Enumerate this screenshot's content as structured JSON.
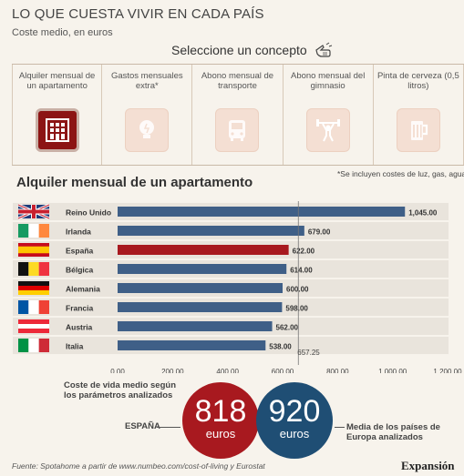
{
  "header": {
    "title": "LO QUE CUESTA VIVIR EN CADA PAÍS",
    "subtitle": "Coste medio, en euros",
    "select_prompt": "Seleccione un concepto"
  },
  "concepts": [
    {
      "label": "Alquiler mensual de un apartamento",
      "icon": "building-icon",
      "active": true
    },
    {
      "label": "Gastos mensuales extra*",
      "icon": "lightbulb-icon",
      "active": false
    },
    {
      "label": "Abono mensual de transporte",
      "icon": "bus-icon",
      "active": false
    },
    {
      "label": "Abono mensual del gimnasio",
      "icon": "weightlifter-icon",
      "active": false
    },
    {
      "label": "Pinta de cerveza (0,5 litros)",
      "icon": "beer-mug-icon",
      "active": false
    }
  ],
  "footnote": "*Se incluyen costes de luz, gas, agua, etc.",
  "colors": {
    "bar": "#3f5f87",
    "bar_highlight": "#a8191f",
    "row_band": "#e9e4dc",
    "accent_red": "#a8191f",
    "accent_blue": "#1f4e74"
  },
  "chart_data": {
    "type": "bar",
    "orientation": "horizontal",
    "title": "Alquiler mensual de un apartamento",
    "categories": [
      "Reino Unido",
      "Irlanda",
      "España",
      "Bélgica",
      "Alemania",
      "Francia",
      "Austria",
      "Italia"
    ],
    "values": [
      1045.0,
      679.0,
      622.0,
      614.0,
      600.0,
      598.0,
      562.0,
      538.0
    ],
    "value_labels": [
      "1,045.00",
      "679.00",
      "622.00",
      "614.00",
      "600.00",
      "598.00",
      "562.00",
      "538.00"
    ],
    "highlight": "España",
    "flags": [
      "uk-flag-icon",
      "ireland-flag-icon",
      "spain-flag-icon",
      "belgium-flag-icon",
      "germany-flag-icon",
      "france-flag-icon",
      "austria-flag-icon",
      "italy-flag-icon"
    ],
    "xlim": [
      0,
      1200
    ],
    "xticks": [
      0,
      200,
      400,
      600,
      800,
      1000,
      1200
    ],
    "xtick_labels": [
      "0.00",
      "200.00",
      "400.00",
      "600.00",
      "800.00",
      "1,000.00",
      "1,200.00"
    ],
    "reference_line": {
      "value": 657.25,
      "label": "657.25"
    },
    "grid": false
  },
  "summary": {
    "label": "Coste de vida medio según los parámetros analizados",
    "spain": {
      "label": "ESPAÑA",
      "value": "818",
      "unit": "euros"
    },
    "europe": {
      "label": "Media de los países de Europa analizados",
      "value": "920",
      "unit": "euros"
    }
  },
  "footer": {
    "source": "Fuente: Spotahome a partir de www.numbeo.com/cost-of-living y Eurostat",
    "brand": "Expansión"
  }
}
